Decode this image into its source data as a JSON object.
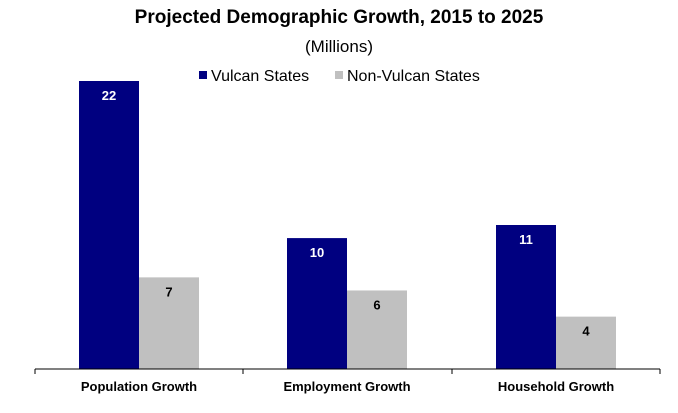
{
  "chart_data": {
    "type": "bar",
    "title": "Projected Demographic Growth, 2015 to 2025",
    "subtitle": "(Millions)",
    "categories": [
      "Population Growth",
      "Employment Growth",
      "Household Growth"
    ],
    "series": [
      {
        "name": "Vulcan States",
        "values": [
          22,
          10,
          11
        ],
        "color": "#000080",
        "label_color": "#ffffff"
      },
      {
        "name": "Non-Vulcan States",
        "values": [
          7,
          6,
          4
        ],
        "color": "#c0c0c0",
        "label_color": "#000000"
      }
    ],
    "ylim": [
      0,
      22
    ],
    "grid": false,
    "legend_position": "top-center",
    "xlabel": "",
    "ylabel": ""
  }
}
